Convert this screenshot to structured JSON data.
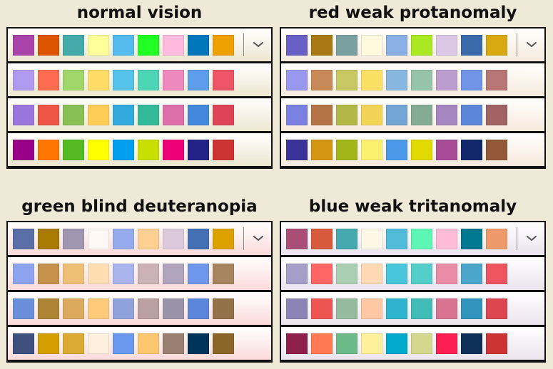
{
  "panels": [
    {
      "title": "normal vision",
      "row_bg": [
        "#ffffff",
        "#ede7d0"
      ],
      "rows": [
        [
          "#aa44aa",
          "#dd5500",
          "#44aaaa",
          "#ffff99",
          "#55bbee",
          "#22ff22",
          "#ffbbdd",
          "#0077bb",
          "#eea000"
        ],
        [
          "#b09af0",
          "#ff6c50",
          "#a0d66a",
          "#ffdd66",
          "#55c3ea",
          "#4dd6b6",
          "#ee8abe",
          "#5c9eec",
          "#ee5566"
        ],
        [
          "#9977dd",
          "#ee5544",
          "#88c055",
          "#ffcc55",
          "#33aadd",
          "#33bb99",
          "#dd70aa",
          "#4488dd",
          "#dd4455"
        ],
        [
          "#990088",
          "#ff7700",
          "#55bb22",
          "#ffff00",
          "#00a0ee",
          "#c8e000",
          "#ee0077",
          "#222288",
          "#cc3333"
        ]
      ]
    },
    {
      "title": "red weak protanomaly",
      "row_bg": [
        "#ffffff",
        "#f6eadc"
      ],
      "rows": [
        [
          "#6a5fc4",
          "#a87812",
          "#7aa0a0",
          "#fffadd",
          "#88b0e4",
          "#aae822",
          "#dcc8e6",
          "#3a6aaa",
          "#d8aa10"
        ],
        [
          "#9898ee",
          "#c88a58",
          "#c8c862",
          "#fce066",
          "#88b8e0",
          "#96c4a8",
          "#bc9ece",
          "#7094e6",
          "#b87676"
        ],
        [
          "#7a80e0",
          "#b47446",
          "#b2b846",
          "#f4d456",
          "#72a4d4",
          "#84ac92",
          "#a686c0",
          "#5c86d8",
          "#a06262"
        ],
        [
          "#3a3498",
          "#d49612",
          "#a2b61a",
          "#fcf070",
          "#4c98e8",
          "#e0da00",
          "#a84c98",
          "#12286a",
          "#925838"
        ]
      ]
    },
    {
      "title": "green blind deuteranopia",
      "row_bg": [
        "#ffffff",
        "#fbdada"
      ],
      "rows": [
        [
          "#5a6ea8",
          "#a87a00",
          "#a096b0",
          "#fff8f4",
          "#96aaee",
          "#ffd092",
          "#dccadc",
          "#4470b6",
          "#dea200"
        ],
        [
          "#8ca4ee",
          "#c4924a",
          "#eec076",
          "#ffdeb4",
          "#aab4ec",
          "#ccb2b6",
          "#b0a4bc",
          "#6e96ea",
          "#a6845e"
        ],
        [
          "#6a90dc",
          "#ac8434",
          "#dcaa5e",
          "#ffca7a",
          "#90a2dc",
          "#baa0a0",
          "#9a94aa",
          "#5c86da",
          "#927248"
        ],
        [
          "#3e507e",
          "#d49e00",
          "#dcaa32",
          "#fff0de",
          "#6a98ee",
          "#ffc670",
          "#9a8070",
          "#003458",
          "#8a6628"
        ]
      ]
    },
    {
      "title": "blue weak tritanomaly",
      "row_bg": [
        "#ffffff",
        "#ebe4ee"
      ],
      "rows": [
        [
          "#aa4e78",
          "#d85a3c",
          "#44aab0",
          "#fff8e6",
          "#50bcda",
          "#5ef6b4",
          "#ffbcd8",
          "#007890",
          "#ee9a6a"
        ],
        [
          "#a49ec8",
          "#fe6666",
          "#aaceb2",
          "#ffdab4",
          "#48c6dc",
          "#54cec8",
          "#ea8ca8",
          "#4ca6cc",
          "#ee5560"
        ],
        [
          "#8c84b4",
          "#ee5450",
          "#96ba9e",
          "#ffc8a4",
          "#2eb4cc",
          "#40bcb6",
          "#d87492",
          "#3294bc",
          "#dc4650"
        ],
        [
          "#8e1e4c",
          "#ff7a52",
          "#6cba88",
          "#fff09c",
          "#00a8cc",
          "#d4d88e",
          "#ff1e50",
          "#0e3058",
          "#cc3434"
        ]
      ]
    }
  ],
  "icons": {
    "dropdown": "chevron-down-icon"
  }
}
